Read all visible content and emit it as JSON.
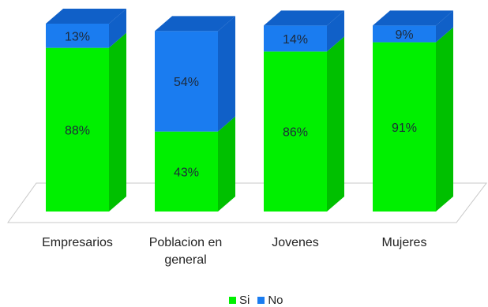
{
  "chart_data": {
    "type": "bar",
    "stacked": true,
    "three_d": true,
    "categories": [
      "Empresarios",
      "Poblacion en\ngeneral",
      "Jovenes",
      "Mujeres"
    ],
    "series": [
      {
        "name": "Si",
        "color": "#00f000",
        "values": [
          88,
          43,
          86,
          91
        ],
        "labels": [
          "88%",
          "43%",
          "86%",
          "91%"
        ]
      },
      {
        "name": "No",
        "color": "#1a7cf0",
        "values": [
          13,
          54,
          14,
          9
        ],
        "labels": [
          "13%",
          "54%",
          "14%",
          "9%"
        ]
      }
    ],
    "ylim": [
      0,
      101
    ],
    "legend_position": "bottom",
    "grid": false
  }
}
